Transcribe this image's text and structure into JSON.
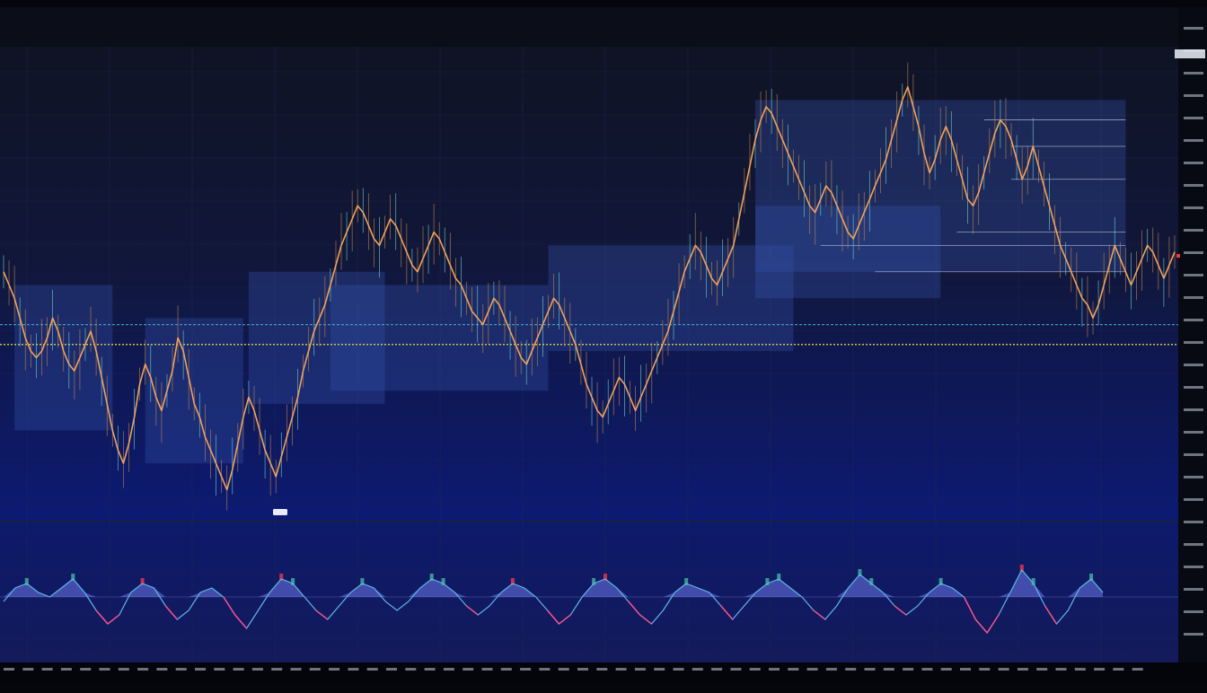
{
  "colors": {
    "background": "#070916",
    "panel_top": "#101427",
    "panel_bottom": "#0d1a6b",
    "candle": "#f2a15a",
    "candle_dim": "#b9854e",
    "wick": "#6dd0c8",
    "zone": "#3550a8",
    "yellow_level": "#e8e055",
    "cyan_level": "#4fb3d9",
    "osc_fill": "#6b78e8",
    "osc_line_up": "#5fb6e8",
    "osc_line_down": "#ff4f8b",
    "osc_bar_up": "#3fae9a",
    "osc_bar_down": "#e0344c",
    "axis_text": "#c8ccdd",
    "marker_red": "#ff3040"
  },
  "header": {
    "line1": "",
    "line2": ""
  },
  "indicator": {
    "label1": "",
    "label2": ""
  },
  "chart_data": {
    "type": "line",
    "title": "",
    "xlabel": "",
    "ylabel": "",
    "grid": true,
    "legend": "none",
    "series": [
      {
        "values": [
          62,
          60,
          58,
          55,
          52,
          50,
          49,
          50,
          52,
          55,
          53,
          50,
          48,
          47,
          49,
          51,
          53,
          50,
          46,
          42,
          38,
          35,
          33,
          36,
          40,
          45,
          48,
          46,
          43,
          41,
          44,
          47,
          52,
          50,
          46,
          42,
          40,
          37,
          35,
          33,
          31,
          29,
          32,
          36,
          40,
          43,
          41,
          38,
          35,
          33,
          31,
          34,
          37,
          40,
          43,
          47,
          50,
          53,
          55,
          57,
          60,
          63,
          66,
          68,
          70,
          72,
          71,
          69,
          67,
          66,
          68,
          70,
          69,
          67,
          65,
          63,
          62,
          64,
          66,
          68,
          67,
          65,
          63,
          61,
          60,
          58,
          56,
          55,
          54,
          56,
          58,
          57,
          55,
          53,
          51,
          49,
          48,
          50,
          52,
          54,
          56,
          58,
          57,
          55,
          53,
          51,
          48,
          45,
          43,
          41,
          40,
          42,
          44,
          46,
          45,
          43,
          41,
          43,
          45,
          47,
          49,
          51,
          53,
          56,
          59,
          62,
          64,
          66,
          65,
          63,
          61,
          60,
          62,
          64,
          66,
          70,
          74,
          78,
          82,
          85,
          87,
          86,
          84,
          82,
          80,
          78,
          76,
          74,
          72,
          71,
          73,
          75,
          74,
          72,
          70,
          68,
          67,
          69,
          71,
          73,
          75,
          77,
          79,
          82,
          85,
          88,
          90,
          87,
          84,
          80,
          77,
          79,
          82,
          84,
          82,
          79,
          76,
          73,
          72,
          74,
          77,
          80,
          83,
          85,
          84,
          82,
          79,
          76,
          78,
          81,
          78,
          75,
          72,
          69,
          66,
          64,
          62,
          60,
          58,
          57,
          55,
          57,
          60,
          63,
          66,
          64,
          62,
          60,
          62,
          64,
          66,
          65,
          63,
          61,
          63,
          65
        ]
      },
      {
        "values": [
          -0.1,
          0.2,
          0.3,
          0.1,
          0.0,
          0.2,
          0.4,
          0.1,
          -0.3,
          -0.6,
          -0.4,
          0.1,
          0.3,
          0.2,
          -0.2,
          -0.5,
          -0.3,
          0.1,
          0.2,
          0.0,
          -0.4,
          -0.7,
          -0.3,
          0.1,
          0.4,
          0.3,
          0.0,
          -0.3,
          -0.5,
          -0.2,
          0.1,
          0.3,
          0.2,
          -0.1,
          -0.3,
          -0.1,
          0.2,
          0.4,
          0.3,
          0.1,
          -0.2,
          -0.4,
          -0.2,
          0.1,
          0.3,
          0.2,
          0.0,
          -0.3,
          -0.6,
          -0.4,
          0.0,
          0.3,
          0.4,
          0.2,
          -0.1,
          -0.4,
          -0.6,
          -0.3,
          0.1,
          0.3,
          0.2,
          0.1,
          -0.2,
          -0.5,
          -0.2,
          0.1,
          0.3,
          0.4,
          0.2,
          0.0,
          -0.3,
          -0.5,
          -0.2,
          0.2,
          0.5,
          0.3,
          0.1,
          -0.2,
          -0.4,
          -0.2,
          0.1,
          0.3,
          0.2,
          0.0,
          -0.5,
          -0.8,
          -0.4,
          0.1,
          0.6,
          0.3,
          -0.2,
          -0.6,
          -0.3,
          0.2,
          0.4,
          0.1
        ]
      }
    ]
  }
}
